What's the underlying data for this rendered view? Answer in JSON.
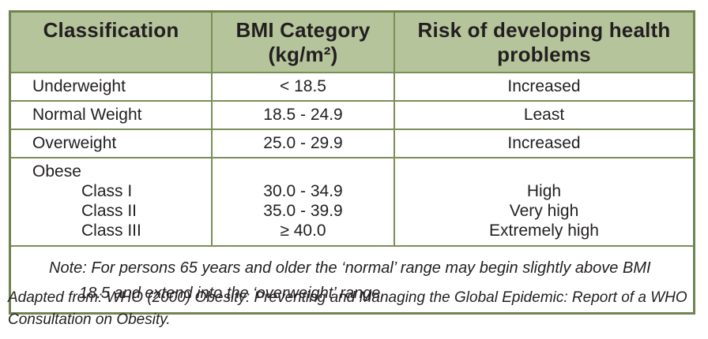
{
  "table": {
    "headers": [
      {
        "label": "Classification"
      },
      {
        "label": "BMI Category (kg/m²)"
      },
      {
        "label": "Risk of developing health problems"
      }
    ],
    "rows": [
      {
        "classification": "Underweight",
        "bmi": "< 18.5",
        "risk": "Increased"
      },
      {
        "classification": "Normal Weight",
        "bmi": "18.5 - 24.9",
        "risk": "Least"
      },
      {
        "classification": "Overweight",
        "bmi": "25.0 - 29.9",
        "risk": "Increased"
      }
    ],
    "obese_group": {
      "label": "Obese",
      "classes": [
        {
          "name": "Class I",
          "bmi": "30.0 - 34.9",
          "risk": "High"
        },
        {
          "name": "Class II",
          "bmi": "35.0 - 39.9",
          "risk": "Very high"
        },
        {
          "name": "Class III",
          "bmi": "≥ 40.0",
          "risk": "Extremely high"
        }
      ]
    },
    "note": {
      "prefix": "Note:",
      "text": "For persons 65 years and older the ‘normal’ range may begin slightly above BMI 18.5 and extend into the ‘overweight’ range."
    }
  },
  "caption": "Adapted from: WHO (2000) Obesity: Preventing and Managing the Global Epidemic: Report of a WHO Consultation on Obesity.",
  "colors": {
    "header_background": "#b5c49b",
    "grid_line": "#6f8450",
    "text": "#231f20"
  }
}
